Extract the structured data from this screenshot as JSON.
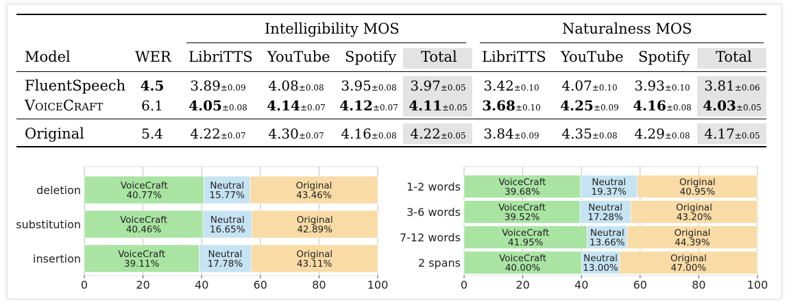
{
  "table": {
    "group_headers": [
      "Intelligibility MOS",
      "Naturalness MOS"
    ],
    "columns": [
      "Model",
      "WER",
      "LibriTTS",
      "YouTube",
      "Spotify",
      "Total",
      "LibriTTS",
      "YouTube",
      "Spotify",
      "Total"
    ],
    "pm_symbol": "±",
    "rows": [
      {
        "model": "FluentSpeech",
        "cells": [
          {
            "v": "4.5",
            "e": "",
            "b": true
          },
          {
            "v": "3.89",
            "e": "0.09",
            "b": false
          },
          {
            "v": "4.08",
            "e": "0.08",
            "b": false
          },
          {
            "v": "3.95",
            "e": "0.08",
            "b": false
          },
          {
            "v": "3.97",
            "e": "0.05",
            "b": false
          },
          {
            "v": "3.42",
            "e": "0.10",
            "b": false
          },
          {
            "v": "4.07",
            "e": "0.10",
            "b": false
          },
          {
            "v": "3.93",
            "e": "0.10",
            "b": false
          },
          {
            "v": "3.81",
            "e": "0.06",
            "b": false
          }
        ]
      },
      {
        "model": "VoiceCraft",
        "cells": [
          {
            "v": "6.1",
            "e": "",
            "b": false
          },
          {
            "v": "4.05",
            "e": "0.08",
            "b": true
          },
          {
            "v": "4.14",
            "e": "0.07",
            "b": true
          },
          {
            "v": "4.12",
            "e": "0.07",
            "b": true
          },
          {
            "v": "4.11",
            "e": "0.05",
            "b": true
          },
          {
            "v": "3.68",
            "e": "0.10",
            "b": true
          },
          {
            "v": "4.25",
            "e": "0.09",
            "b": true
          },
          {
            "v": "4.16",
            "e": "0.08",
            "b": true
          },
          {
            "v": "4.03",
            "e": "0.05",
            "b": true
          }
        ]
      },
      {
        "model": "Original",
        "cells": [
          {
            "v": "5.4",
            "e": "",
            "b": false
          },
          {
            "v": "4.22",
            "e": "0.07",
            "b": false
          },
          {
            "v": "4.30",
            "e": "0.07",
            "b": false
          },
          {
            "v": "4.16",
            "e": "0.08",
            "b": false
          },
          {
            "v": "4.22",
            "e": "0.05",
            "b": false
          },
          {
            "v": "3.84",
            "e": "0.09",
            "b": false
          },
          {
            "v": "4.35",
            "e": "0.08",
            "b": false
          },
          {
            "v": "4.29",
            "e": "0.08",
            "b": false
          },
          {
            "v": "4.17",
            "e": "0.05",
            "b": false
          }
        ]
      }
    ]
  },
  "chart_data": [
    {
      "type": "bar",
      "orientation": "horizontal",
      "stacked": true,
      "categories": [
        "deletion",
        "substitution",
        "insertion"
      ],
      "series": [
        {
          "name": "VoiceCraft",
          "values": [
            40.77,
            40.46,
            39.11
          ]
        },
        {
          "name": "Neutral",
          "values": [
            15.77,
            16.65,
            17.78
          ]
        },
        {
          "name": "Original",
          "values": [
            43.46,
            42.89,
            43.11
          ]
        }
      ],
      "xlim": [
        0,
        100
      ],
      "xticks": [
        0,
        20,
        40,
        60,
        80,
        100
      ],
      "grid": true,
      "colors": {
        "VoiceCraft": "#a9e4a3",
        "Neutral": "#c5e3f2",
        "Original": "#f9dba6"
      }
    },
    {
      "type": "bar",
      "orientation": "horizontal",
      "stacked": true,
      "categories": [
        "1-2 words",
        "3-6 words",
        "7-12 words",
        "2 spans"
      ],
      "series": [
        {
          "name": "VoiceCraft",
          "values": [
            39.68,
            39.52,
            41.95,
            40.0
          ]
        },
        {
          "name": "Neutral",
          "values": [
            19.37,
            17.28,
            13.66,
            13.0
          ]
        },
        {
          "name": "Original",
          "values": [
            40.95,
            43.2,
            44.39,
            47.0
          ]
        }
      ],
      "xlim": [
        0,
        100
      ],
      "xticks": [
        0,
        20,
        40,
        60,
        80,
        100
      ],
      "grid": true,
      "colors": {
        "VoiceCraft": "#a9e4a3",
        "Neutral": "#c5e3f2",
        "Original": "#f9dba6"
      }
    }
  ]
}
